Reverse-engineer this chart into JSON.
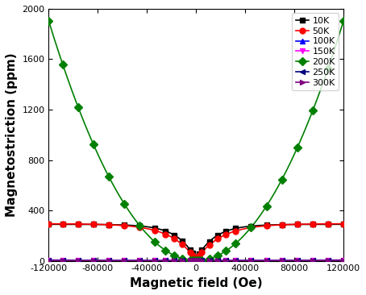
{
  "title": "",
  "xlabel": "Magnetic field (Oe)",
  "ylabel": "Magnetostriction (ppm)",
  "xlim": [
    -120000,
    120000
  ],
  "ylim": [
    0,
    2000
  ],
  "xticks": [
    -120000,
    -80000,
    -40000,
    0,
    40000,
    80000,
    120000
  ],
  "yticks": [
    0,
    400,
    800,
    1200,
    1600,
    2000
  ],
  "series": [
    {
      "label": "10K",
      "color": "#000000",
      "marker": "s",
      "exponent": 0.55,
      "scale": 280.0,
      "min_val": 10,
      "sat_field": 15000
    },
    {
      "label": "50K",
      "color": "#ff0000",
      "marker": "o",
      "exponent": 0.6,
      "scale": 290.0,
      "min_val": 5,
      "sat_field": 20000
    },
    {
      "label": "100K",
      "color": "#0000ff",
      "marker": "^",
      "exponent": 1.25,
      "scale": 4.8e-07,
      "min_val": 2,
      "sat_field": 0
    },
    {
      "label": "150K",
      "color": "#ff00ff",
      "marker": "v",
      "exponent": 2.15,
      "scale": 7.5e-11,
      "min_val": 1,
      "sat_field": 0
    },
    {
      "label": "200K",
      "color": "#008000",
      "marker": "D",
      "exponent": 2.0,
      "scale": 1.32e-07,
      "min_val": 1,
      "sat_field": 0
    },
    {
      "label": "250K",
      "color": "#000080",
      "marker": "<",
      "exponent": 1.8,
      "scale": 2.8e-09,
      "min_val": 1,
      "sat_field": 0
    },
    {
      "label": "300K",
      "color": "#800080",
      "marker": ">",
      "exponent": 1.55,
      "scale": 1.8e-08,
      "min_val": 1,
      "sat_field": 0
    }
  ],
  "n_points": 200,
  "n_markers": 28,
  "figsize": [
    4.54,
    3.66
  ],
  "dpi": 100
}
